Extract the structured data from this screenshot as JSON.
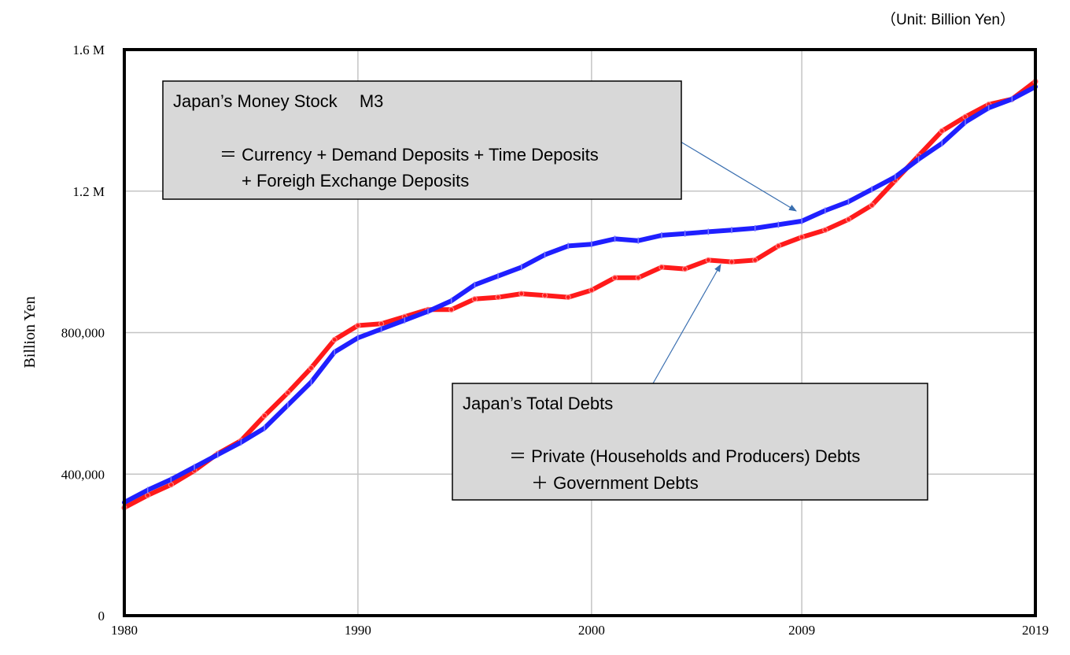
{
  "chart_data": {
    "type": "line",
    "unit_label": "（Unit: Billion Yen）",
    "ylabel": "Billion Yen",
    "xlim": [
      1980,
      2019
    ],
    "ylim": [
      0,
      1600000
    ],
    "x_ticks": [
      1980,
      1990,
      2000,
      2009,
      2019
    ],
    "x_tick_labels": [
      "1980",
      "1990",
      "2000",
      "2009",
      "2019"
    ],
    "y_ticks": [
      0,
      400000,
      800000,
      1200000,
      1600000
    ],
    "y_tick_labels": [
      "0",
      "400,000",
      "800,000",
      "1.2 M",
      "1.6 M"
    ],
    "grid": true,
    "x": [
      1980,
      1981,
      1982,
      1983,
      1984,
      1985,
      1986,
      1987,
      1988,
      1989,
      1990,
      1991,
      1992,
      1993,
      1994,
      1995,
      1996,
      1997,
      1998,
      1999,
      2000,
      2001,
      2002,
      2003,
      2004,
      2005,
      2006,
      2007,
      2008,
      2009,
      2010,
      2011,
      2012,
      2013,
      2014,
      2015,
      2016,
      2017,
      2018,
      2019
    ],
    "series": [
      {
        "name": "Japan’s Money Stock M3",
        "color": "#1f1fff",
        "values": [
          320000,
          355000,
          385000,
          420000,
          455000,
          490000,
          530000,
          595000,
          660000,
          745000,
          785000,
          810000,
          835000,
          860000,
          890000,
          935000,
          960000,
          985000,
          1020000,
          1045000,
          1050000,
          1065000,
          1060000,
          1075000,
          1080000,
          1085000,
          1090000,
          1095000,
          1105000,
          1115000,
          1145000,
          1170000,
          1205000,
          1240000,
          1290000,
          1335000,
          1395000,
          1435000,
          1460000,
          1495000
        ]
      },
      {
        "name": "Japan’s Total Debts",
        "color": "#ff1a1a",
        "values": [
          305000,
          340000,
          370000,
          410000,
          458000,
          495000,
          565000,
          630000,
          700000,
          780000,
          820000,
          825000,
          845000,
          865000,
          865000,
          895000,
          900000,
          910000,
          905000,
          900000,
          920000,
          955000,
          955000,
          985000,
          980000,
          1005000,
          1000000,
          1005000,
          1045000,
          1070000,
          1090000,
          1120000,
          1160000,
          1230000,
          1300000,
          1370000,
          1410000,
          1445000,
          1460000,
          1510000
        ]
      }
    ],
    "annotations": [
      {
        "id": "m3",
        "title": "Japan’s Money Stock　 M3",
        "line1": "＝ Currency + Demand Deposits + Time Deposits",
        "line2": "+ Foreigh Exchange Deposits"
      },
      {
        "id": "debts",
        "title": "Japan’s Total Debts",
        "line1": "＝ Private (Households and Producers) Debts",
        "line2": "＋ Government Debts"
      }
    ]
  }
}
